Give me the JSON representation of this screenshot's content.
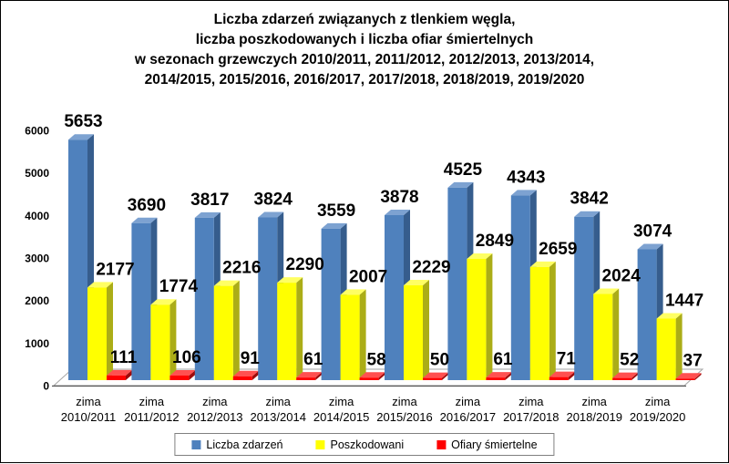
{
  "chart_data": {
    "type": "bar",
    "title_lines": [
      "Liczba zdarzeń związanych z tlenkiem węgla,",
      "liczba poszkodowanych i liczba ofiar śmiertelnych",
      "w sezonach grzewczych 2010/2011, 2011/2012, 2012/2013, 2013/2014,",
      "2014/2015, 2015/2016, 2016/2017, 2017/2018, 2018/2019, 2019/2020"
    ],
    "categories": [
      {
        "top": "zima",
        "bottom": "2010/2011"
      },
      {
        "top": "zima",
        "bottom": "2011/2012"
      },
      {
        "top": "zima",
        "bottom": "2012/2013"
      },
      {
        "top": "zima",
        "bottom": "2013/2014"
      },
      {
        "top": "zima",
        "bottom": "2014/2015"
      },
      {
        "top": "zima",
        "bottom": "2015/2016"
      },
      {
        "top": "zima",
        "bottom": "2016/2017"
      },
      {
        "top": "zima",
        "bottom": "2017/2018"
      },
      {
        "top": "zima",
        "bottom": "2018/2019"
      },
      {
        "top": "zima",
        "bottom": "2019/2020"
      }
    ],
    "series": [
      {
        "name": "Liczba zdarzeń",
        "slug": "liczba-zdarzen",
        "color": "#4F81BD",
        "color_side": "#365D8D",
        "color_top": "#7DA2D1",
        "values": [
          5653,
          3690,
          3817,
          3824,
          3559,
          3878,
          4525,
          4343,
          3842,
          3074
        ]
      },
      {
        "name": "Poszkodowani",
        "slug": "poszkodowani",
        "color": "#FFFF00",
        "color_side": "#ABAD17",
        "color_top": "#FFFF63",
        "values": [
          2177,
          1774,
          2216,
          2290,
          2007,
          2229,
          2849,
          2659,
          2024,
          1447
        ]
      },
      {
        "name": "Ofiary śmiertelne",
        "slug": "ofiary-smiertelne",
        "color": "#FE0000",
        "color_side": "#9E0B0B",
        "color_top": "#FF5050",
        "values": [
          111,
          106,
          91,
          61,
          58,
          50,
          61,
          71,
          52,
          37
        ]
      }
    ],
    "ylim": [
      0,
      6000
    ],
    "ytick_step": 1000,
    "grid": false,
    "legend_position": "bottom",
    "colors": {
      "background": "#FFFFFF",
      "axis_line": "#595959",
      "floor_outline": "#A6A6A6",
      "text": "#000000"
    }
  }
}
